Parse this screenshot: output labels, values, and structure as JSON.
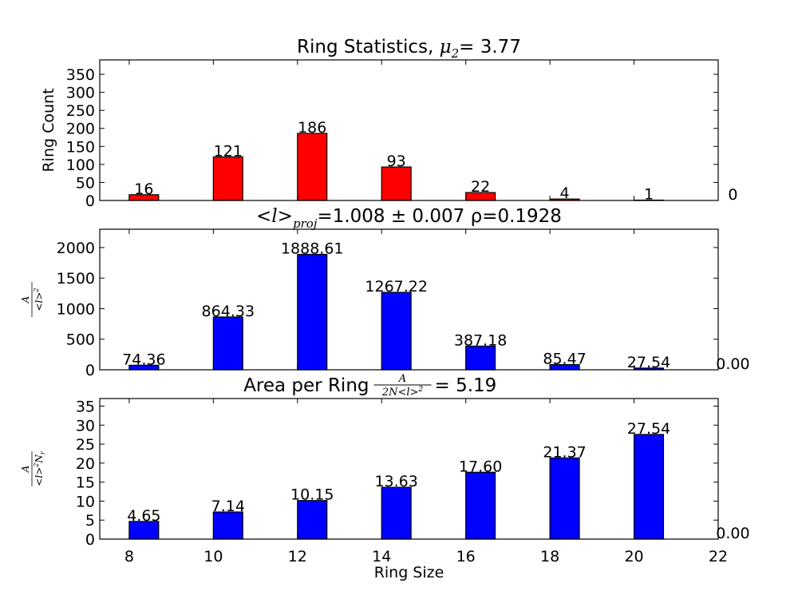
{
  "chart_data": [
    {
      "type": "bar",
      "title": {
        "pre": "Ring Statistics, ",
        "sym": "μ",
        "sub": "2",
        "post": "= 3.77"
      },
      "ylabel": "Ring Count",
      "x": [
        8,
        10,
        12,
        14,
        16,
        18,
        20,
        22
      ],
      "values": [
        16,
        121,
        186,
        93,
        22,
        4,
        1,
        0
      ],
      "labels": [
        "16",
        "121",
        "186",
        "93",
        "22",
        "4",
        "1",
        "0"
      ],
      "yticks": [
        0,
        50,
        100,
        150,
        200,
        250,
        300,
        350
      ],
      "ylim": [
        0,
        390
      ],
      "xlim": [
        7.3,
        22
      ],
      "color": "#ff0000",
      "show_xticklabels": false
    },
    {
      "type": "bar",
      "title": {
        "pre": "<l>",
        "sub": "proj",
        "post": "=1.008 ± 0.007 ρ=0.1928"
      },
      "ylabel": {
        "num": "A",
        "den": "<l>",
        "den_sup": "2"
      },
      "x": [
        8,
        10,
        12,
        14,
        16,
        18,
        20,
        22
      ],
      "values": [
        74.36,
        864.33,
        1888.61,
        1267.22,
        387.18,
        85.47,
        27.54,
        0.0
      ],
      "labels": [
        "74.36",
        "864.33",
        "1888.61",
        "1267.22",
        "387.18",
        "85.47",
        "27.54",
        "0.00"
      ],
      "yticks": [
        0,
        500,
        1000,
        1500,
        2000
      ],
      "ylim": [
        0,
        2300
      ],
      "xlim": [
        7.3,
        22
      ],
      "color": "#0000ff",
      "show_xticklabels": false
    },
    {
      "type": "bar",
      "title": {
        "pre": "Area per Ring ",
        "frac_num": "A",
        "frac_den": "2N<l>",
        "frac_den_sup": "2",
        "post": "= 5.19"
      },
      "ylabel": {
        "num": "A",
        "den": "<l>",
        "den_sup": "2",
        "den_sub": "r",
        "den_extra": "N"
      },
      "xlabel": "Ring Size",
      "x": [
        8,
        10,
        12,
        14,
        16,
        18,
        20,
        22
      ],
      "values": [
        4.65,
        7.14,
        10.15,
        13.63,
        17.6,
        21.37,
        27.54,
        0.0
      ],
      "labels": [
        "4.65",
        "7.14",
        "10.15",
        "13.63",
        "17.60",
        "21.37",
        "27.54",
        "0.00"
      ],
      "yticks": [
        0,
        5,
        10,
        15,
        20,
        25,
        30,
        35
      ],
      "ylim": [
        0,
        37
      ],
      "xlim": [
        7.3,
        22
      ],
      "xticks": [
        "8",
        "10",
        "12",
        "14",
        "16",
        "18",
        "20",
        "22"
      ],
      "color": "#0000ff",
      "show_xticklabels": true
    }
  ]
}
